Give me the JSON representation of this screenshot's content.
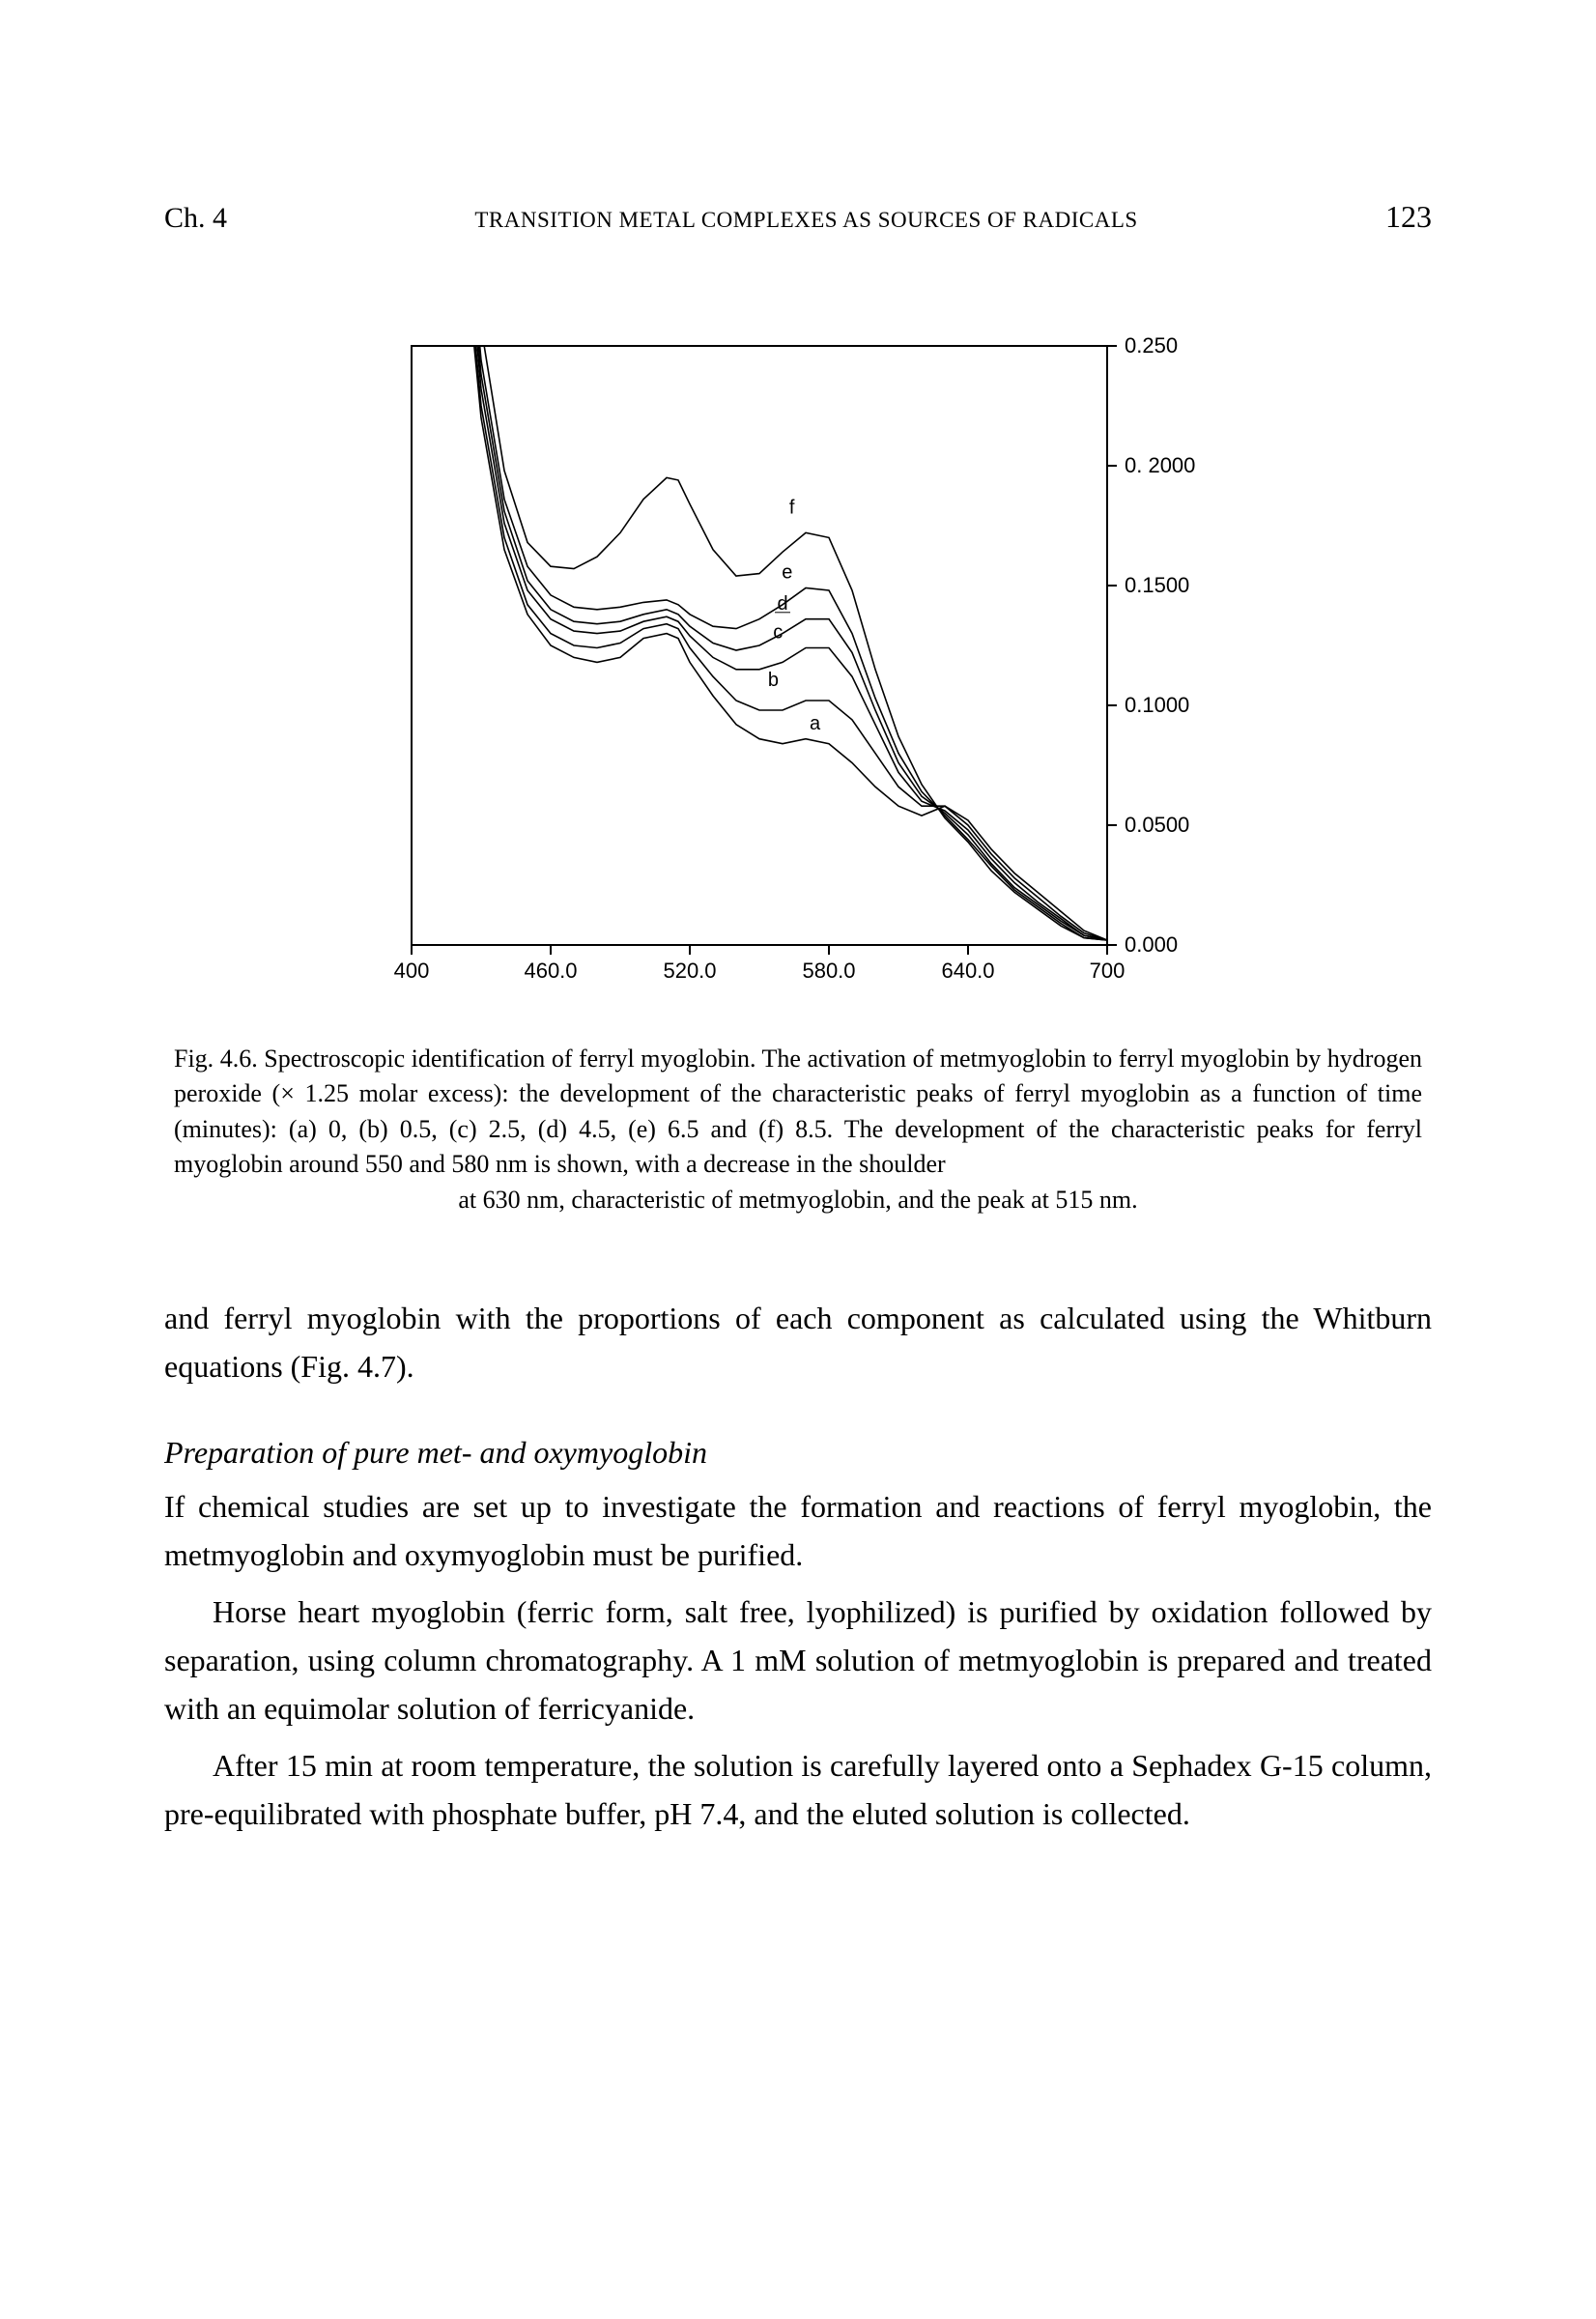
{
  "header": {
    "chapter": "Ch. 4",
    "running_title": "TRANSITION METAL COMPLEXES AS SOURCES OF RADICALS",
    "page": "123"
  },
  "figure": {
    "type": "line",
    "xlim": [
      400,
      700
    ],
    "ylim": [
      0.0,
      0.25
    ],
    "xticks": [
      400,
      460.0,
      520.0,
      580.0,
      640.0,
      700
    ],
    "xtick_labels": [
      "400",
      "460.0",
      "520.0",
      "580.0",
      "640.0",
      "700"
    ],
    "yticks": [
      0.0,
      0.05,
      0.1,
      0.15,
      0.2,
      0.25
    ],
    "ytick_labels": [
      "0.000",
      "0.0500",
      "0.1000",
      "0.1500",
      "0. 2000",
      "0.250"
    ],
    "tick_font_family": "Arial, sans-serif",
    "tick_fontsize": 22,
    "label_fontsize": 20,
    "line_color": "#000000",
    "line_width": 1.6,
    "axis_color": "#000000",
    "axis_width": 2.0,
    "background_color": "#ffffff",
    "series": [
      {
        "label": "a",
        "label_xy": [
          574,
          0.09
        ],
        "points": [
          [
            400,
            0.9
          ],
          [
            410,
            0.5
          ],
          [
            420,
            0.32
          ],
          [
            430,
            0.22
          ],
          [
            440,
            0.165
          ],
          [
            450,
            0.138
          ],
          [
            460,
            0.125
          ],
          [
            470,
            0.12
          ],
          [
            480,
            0.118
          ],
          [
            490,
            0.12
          ],
          [
            500,
            0.128
          ],
          [
            510,
            0.13
          ],
          [
            515,
            0.128
          ],
          [
            520,
            0.118
          ],
          [
            530,
            0.104
          ],
          [
            540,
            0.092
          ],
          [
            550,
            0.086
          ],
          [
            560,
            0.084
          ],
          [
            570,
            0.086
          ],
          [
            580,
            0.084
          ],
          [
            590,
            0.076
          ],
          [
            600,
            0.066
          ],
          [
            610,
            0.058
          ],
          [
            620,
            0.054
          ],
          [
            630,
            0.058
          ],
          [
            640,
            0.052
          ],
          [
            650,
            0.04
          ],
          [
            660,
            0.03
          ],
          [
            670,
            0.022
          ],
          [
            680,
            0.014
          ],
          [
            690,
            0.006
          ],
          [
            700,
            0.002
          ]
        ]
      },
      {
        "label": "b",
        "label_xy": [
          556,
          0.108
        ],
        "points": [
          [
            400,
            0.9
          ],
          [
            410,
            0.51
          ],
          [
            420,
            0.33
          ],
          [
            430,
            0.225
          ],
          [
            440,
            0.17
          ],
          [
            450,
            0.142
          ],
          [
            460,
            0.13
          ],
          [
            470,
            0.125
          ],
          [
            480,
            0.124
          ],
          [
            490,
            0.126
          ],
          [
            500,
            0.132
          ],
          [
            510,
            0.134
          ],
          [
            515,
            0.132
          ],
          [
            520,
            0.124
          ],
          [
            530,
            0.112
          ],
          [
            540,
            0.102
          ],
          [
            550,
            0.098
          ],
          [
            560,
            0.098
          ],
          [
            570,
            0.102
          ],
          [
            580,
            0.102
          ],
          [
            590,
            0.094
          ],
          [
            600,
            0.08
          ],
          [
            610,
            0.066
          ],
          [
            620,
            0.058
          ],
          [
            630,
            0.058
          ],
          [
            640,
            0.05
          ],
          [
            650,
            0.038
          ],
          [
            660,
            0.028
          ],
          [
            670,
            0.02
          ],
          [
            680,
            0.012
          ],
          [
            690,
            0.005
          ],
          [
            700,
            0.002
          ]
        ]
      },
      {
        "label": "c",
        "label_xy": [
          558,
          0.128
        ],
        "points": [
          [
            400,
            0.9
          ],
          [
            410,
            0.52
          ],
          [
            420,
            0.338
          ],
          [
            430,
            0.232
          ],
          [
            440,
            0.176
          ],
          [
            450,
            0.148
          ],
          [
            460,
            0.136
          ],
          [
            470,
            0.131
          ],
          [
            480,
            0.13
          ],
          [
            490,
            0.131
          ],
          [
            500,
            0.135
          ],
          [
            510,
            0.137
          ],
          [
            515,
            0.135
          ],
          [
            520,
            0.129
          ],
          [
            530,
            0.12
          ],
          [
            540,
            0.115
          ],
          [
            550,
            0.115
          ],
          [
            560,
            0.118
          ],
          [
            570,
            0.124
          ],
          [
            580,
            0.124
          ],
          [
            590,
            0.112
          ],
          [
            600,
            0.092
          ],
          [
            610,
            0.072
          ],
          [
            620,
            0.06
          ],
          [
            630,
            0.056
          ],
          [
            640,
            0.048
          ],
          [
            650,
            0.036
          ],
          [
            660,
            0.026
          ],
          [
            670,
            0.018
          ],
          [
            680,
            0.011
          ],
          [
            690,
            0.004
          ],
          [
            700,
            0.002
          ]
        ]
      },
      {
        "label": "d",
        "label_xy": [
          560,
          0.14
        ],
        "points": [
          [
            400,
            0.9
          ],
          [
            410,
            0.53
          ],
          [
            420,
            0.345
          ],
          [
            430,
            0.238
          ],
          [
            440,
            0.181
          ],
          [
            450,
            0.152
          ],
          [
            460,
            0.14
          ],
          [
            470,
            0.135
          ],
          [
            480,
            0.134
          ],
          [
            490,
            0.135
          ],
          [
            500,
            0.138
          ],
          [
            510,
            0.14
          ],
          [
            515,
            0.138
          ],
          [
            520,
            0.133
          ],
          [
            530,
            0.126
          ],
          [
            540,
            0.123
          ],
          [
            550,
            0.125
          ],
          [
            560,
            0.13
          ],
          [
            570,
            0.136
          ],
          [
            580,
            0.136
          ],
          [
            590,
            0.122
          ],
          [
            600,
            0.098
          ],
          [
            610,
            0.076
          ],
          [
            620,
            0.062
          ],
          [
            630,
            0.055
          ],
          [
            640,
            0.046
          ],
          [
            650,
            0.034
          ],
          [
            660,
            0.024
          ],
          [
            670,
            0.017
          ],
          [
            680,
            0.01
          ],
          [
            690,
            0.004
          ],
          [
            700,
            0.002
          ]
        ]
      },
      {
        "label": "e",
        "label_xy": [
          562,
          0.153
        ],
        "points": [
          [
            400,
            0.9
          ],
          [
            410,
            0.54
          ],
          [
            420,
            0.352
          ],
          [
            430,
            0.244
          ],
          [
            440,
            0.186
          ],
          [
            450,
            0.158
          ],
          [
            460,
            0.146
          ],
          [
            470,
            0.141
          ],
          [
            480,
            0.14
          ],
          [
            490,
            0.141
          ],
          [
            500,
            0.143
          ],
          [
            510,
            0.144
          ],
          [
            515,
            0.142
          ],
          [
            520,
            0.138
          ],
          [
            530,
            0.133
          ],
          [
            540,
            0.132
          ],
          [
            550,
            0.136
          ],
          [
            560,
            0.142
          ],
          [
            570,
            0.149
          ],
          [
            580,
            0.148
          ],
          [
            590,
            0.13
          ],
          [
            600,
            0.103
          ],
          [
            610,
            0.08
          ],
          [
            620,
            0.064
          ],
          [
            630,
            0.054
          ],
          [
            640,
            0.044
          ],
          [
            650,
            0.033
          ],
          [
            660,
            0.023
          ],
          [
            670,
            0.016
          ],
          [
            680,
            0.009
          ],
          [
            690,
            0.003
          ],
          [
            700,
            0.002
          ]
        ]
      },
      {
        "label": "f",
        "label_xy": [
          564,
          0.18
        ],
        "points": [
          [
            400,
            0.9
          ],
          [
            410,
            0.56
          ],
          [
            420,
            0.37
          ],
          [
            430,
            0.258
          ],
          [
            440,
            0.198
          ],
          [
            450,
            0.168
          ],
          [
            460,
            0.158
          ],
          [
            470,
            0.157
          ],
          [
            480,
            0.162
          ],
          [
            490,
            0.172
          ],
          [
            500,
            0.186
          ],
          [
            510,
            0.195
          ],
          [
            515,
            0.194
          ],
          [
            520,
            0.184
          ],
          [
            530,
            0.165
          ],
          [
            540,
            0.154
          ],
          [
            550,
            0.155
          ],
          [
            560,
            0.164
          ],
          [
            570,
            0.172
          ],
          [
            580,
            0.17
          ],
          [
            590,
            0.148
          ],
          [
            600,
            0.115
          ],
          [
            610,
            0.087
          ],
          [
            620,
            0.067
          ],
          [
            630,
            0.053
          ],
          [
            640,
            0.043
          ],
          [
            650,
            0.031
          ],
          [
            660,
            0.022
          ],
          [
            670,
            0.015
          ],
          [
            680,
            0.008
          ],
          [
            690,
            0.003
          ],
          [
            700,
            0.002
          ]
        ]
      }
    ]
  },
  "caption": {
    "prefix": "Fig. 4.6.",
    "line1": "Fig. 4.6. Spectroscopic identification of ferryl myoglobin. The activation of metmyoglobin to ferryl myoglobin by hydrogen peroxide (× 1.25 molar excess): the development of the characteristic peaks of ferryl myoglobin as a function of time (minutes): (a) 0, (b) 0.5, (c) 2.5, (d) 4.5, (e) 6.5 and (f) 8.5. The development of the characteristic peaks for ferryl myoglobin around 550 and 580 nm is shown, with a decrease in the shoulder",
    "line2": "at 630 nm, characteristic of metmyoglobin, and the peak at 515 nm."
  },
  "body": {
    "para1": "and ferryl myoglobin with the proportions of each component as calculated using the Whitburn equations (Fig. 4.7).",
    "heading": "Preparation of pure met- and oxymyoglobin",
    "para2": "If chemical studies are set up to investigate the formation and reactions of ferryl myoglobin, the metmyoglobin and oxymyoglobin must be purified.",
    "para3": "Horse heart myoglobin (ferric form, salt free, lyophilized) is purified by oxidation followed by separation, using column chromatography. A 1 mM solution of metmyoglobin is prepared and treated with an equimolar solution of ferricyanide.",
    "para4": "After 15 min at room temperature, the solution is carefully layered onto a Sephadex G-15 column, pre-equilibrated with phosphate buffer, pH 7.4, and the eluted solution is collected."
  }
}
